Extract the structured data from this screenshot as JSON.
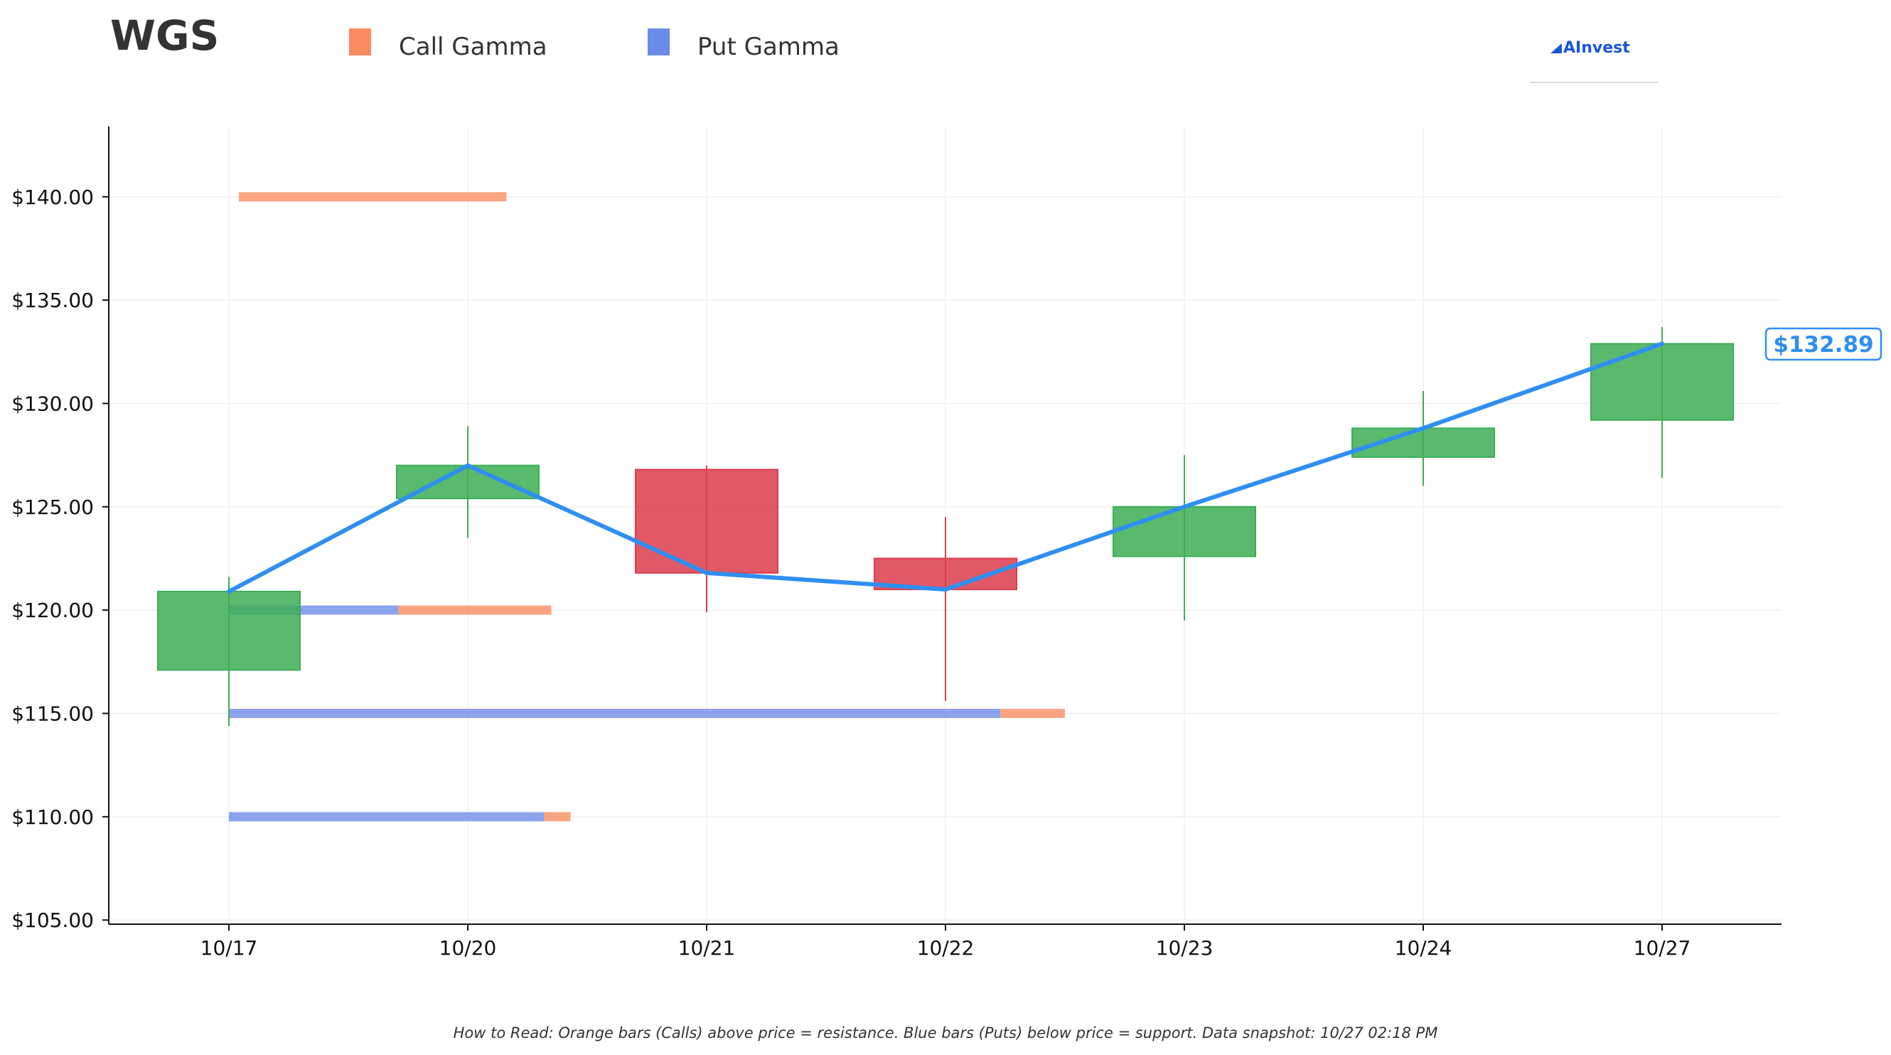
{
  "chart_data": {
    "type": "candlestick",
    "title": "WGS",
    "legend": [
      {
        "name": "Call Gamma",
        "color": "#fa8a5f"
      },
      {
        "name": "Put Gamma",
        "color": "#6b8be8"
      }
    ],
    "logo": "AInvest",
    "categories": [
      "10/17",
      "10/20",
      "10/21",
      "10/22",
      "10/23",
      "10/24",
      "10/27"
    ],
    "y_ticks": [
      105,
      110,
      115,
      120,
      125,
      130,
      135,
      140
    ],
    "y_tick_labels": [
      "$105.00",
      "$110.00",
      "$115.00",
      "$120.00",
      "$125.00",
      "$130.00",
      "$135.00",
      "$140.00"
    ],
    "ylim": [
      104.8,
      143.4
    ],
    "candles": [
      {
        "date": "10/17",
        "open": 117.1,
        "high": 121.6,
        "low": 114.4,
        "close": 120.9
      },
      {
        "date": "10/20",
        "open": 125.4,
        "high": 128.9,
        "low": 123.5,
        "close": 127.0
      },
      {
        "date": "10/21",
        "open": 126.8,
        "high": 127.0,
        "low": 119.9,
        "close": 121.8
      },
      {
        "date": "10/22",
        "open": 122.5,
        "high": 124.5,
        "low": 115.6,
        "close": 121.0
      },
      {
        "date": "10/23",
        "open": 122.6,
        "high": 127.5,
        "low": 119.5,
        "close": 125.0
      },
      {
        "date": "10/24",
        "open": 127.4,
        "high": 130.6,
        "low": 126.0,
        "close": 128.8
      },
      {
        "date": "10/27",
        "open": 129.2,
        "high": 133.7,
        "low": 126.4,
        "close": 132.89
      }
    ],
    "price_line": {
      "color": "#2e8ff0",
      "values": [
        120.9,
        127.0,
        121.8,
        121.0,
        125.0,
        128.8,
        132.89
      ]
    },
    "gamma_levels": [
      {
        "strike": 140,
        "put_gamma": 0,
        "call_gamma": 1.12
      },
      {
        "strike": 120,
        "put_gamma": 0.71,
        "call_gamma": 0.64
      },
      {
        "strike": 115,
        "put_gamma": 3.23,
        "call_gamma": 0.27
      },
      {
        "strike": 110,
        "put_gamma": 1.32,
        "call_gamma": 0.11
      }
    ],
    "last_price_label": "$132.89",
    "footnote": "How to Read: Orange bars (Calls) above price = resistance. Blue bars (Puts) below price = support. Data snapshot: 10/27 02:18 PM",
    "colors": {
      "up": "#3cae55",
      "down": "#dc3c4c",
      "call": "#fa8a5f",
      "put": "#6b8be8",
      "axis": "#111111",
      "grid": "#f0f0f0"
    },
    "grid": true
  }
}
